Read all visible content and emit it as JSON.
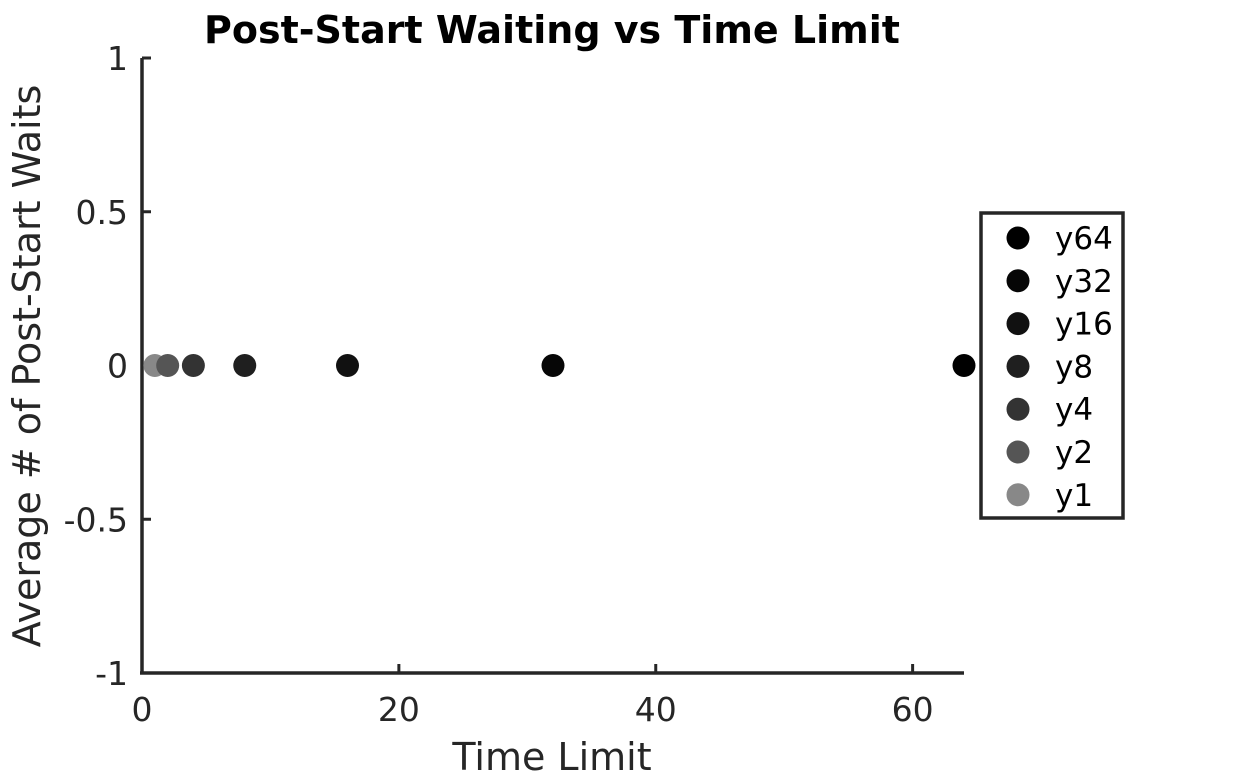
{
  "chart_data": {
    "type": "scatter",
    "title": "Post-Start Waiting vs Time Limit",
    "xlabel": "Time Limit",
    "ylabel": "Average # of Post-Start Waits",
    "xlim": [
      0,
      64
    ],
    "ylim": [
      -1,
      1
    ],
    "xticks": [
      0,
      20,
      40,
      60
    ],
    "xtick_labels": [
      "0",
      "20",
      "40",
      "60"
    ],
    "yticks": [
      -1,
      -0.5,
      0,
      0.5,
      1
    ],
    "ytick_labels": [
      "-1",
      "-0.5",
      "0",
      "0.5",
      "1"
    ],
    "grid": false,
    "legend_position": "right",
    "series": [
      {
        "name": "y64",
        "x": [
          64
        ],
        "y": [
          0
        ],
        "color": "#000000"
      },
      {
        "name": "y32",
        "x": [
          32
        ],
        "y": [
          0
        ],
        "color": "#060606"
      },
      {
        "name": "y16",
        "x": [
          16
        ],
        "y": [
          0
        ],
        "color": "#111111"
      },
      {
        "name": "y8",
        "x": [
          8
        ],
        "y": [
          0
        ],
        "color": "#1f1f1f"
      },
      {
        "name": "y4",
        "x": [
          4
        ],
        "y": [
          0
        ],
        "color": "#333333"
      },
      {
        "name": "y2",
        "x": [
          2
        ],
        "y": [
          0
        ],
        "color": "#555555"
      },
      {
        "name": "y1",
        "x": [
          1
        ],
        "y": [
          0
        ],
        "color": "#888888"
      }
    ]
  }
}
